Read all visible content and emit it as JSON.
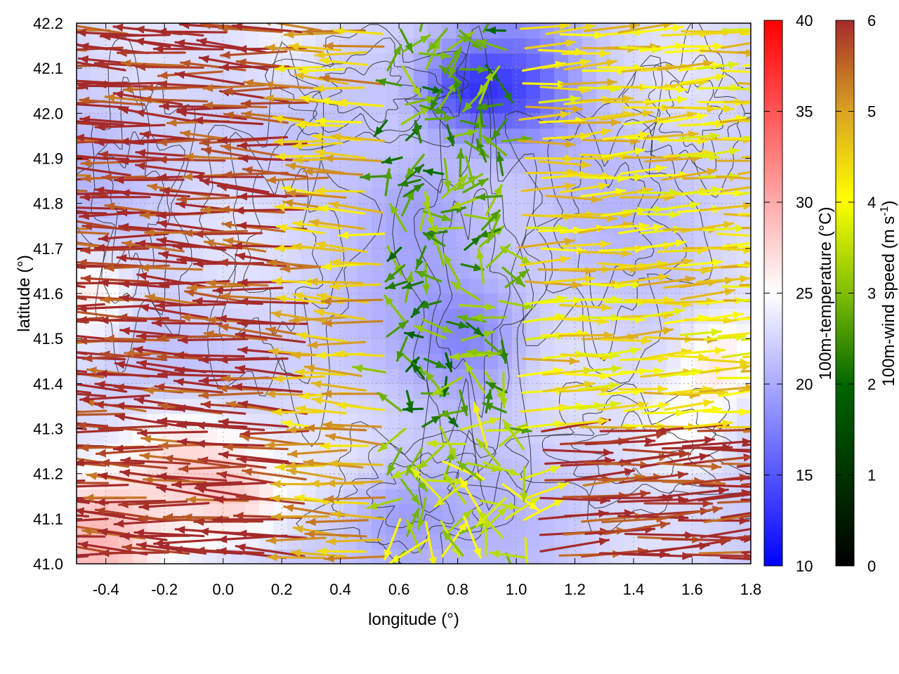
{
  "chart_data": {
    "type": "heatmap",
    "subtype": "field-with-wind-vectors-and-contours",
    "xlabel": "longitude (°)",
    "ylabel": "latitude (°)",
    "xlim": [
      -0.5,
      1.8
    ],
    "ylim": [
      41.0,
      42.2
    ],
    "xticks": [
      -0.4,
      -0.2,
      0.0,
      0.2,
      0.4,
      0.6,
      0.8,
      1.0,
      1.2,
      1.4,
      1.6,
      1.8
    ],
    "xtick_labels": [
      "-0.4",
      "-0.2",
      "0.0",
      "0.2",
      "0.4",
      "0.6",
      "0.8",
      "1.0",
      "1.2",
      "1.4",
      "1.6",
      "1.8"
    ],
    "yticks": [
      41.0,
      41.1,
      41.2,
      41.3,
      41.4,
      41.5,
      41.6,
      41.7,
      41.8,
      41.9,
      42.0,
      42.1,
      42.2
    ],
    "ytick_labels": [
      "41.0",
      "41.1",
      "41.2",
      "41.3",
      "41.4",
      "41.5",
      "41.6",
      "41.7",
      "41.8",
      "41.9",
      "42.0",
      "42.1",
      "42.2"
    ],
    "grid": true,
    "colorbars": [
      {
        "name": "temperature",
        "label": "100m-temperature (°C)",
        "range": [
          10,
          40
        ],
        "ticks": [
          10,
          15,
          20,
          25,
          30,
          35,
          40
        ],
        "tick_labels": [
          "10",
          "15",
          "20",
          "25",
          "30",
          "35",
          "40"
        ],
        "colors": [
          "#0000ff",
          "#ffffff",
          "#ff0000"
        ]
      },
      {
        "name": "wind-speed",
        "label_main": "100m-wind speed (m s",
        "label_sup": "-1",
        "label_close": ")",
        "range": [
          0,
          6
        ],
        "ticks": [
          0,
          1,
          2,
          3,
          4,
          5,
          6
        ],
        "tick_labels": [
          "0",
          "1",
          "2",
          "3",
          "4",
          "5",
          "6"
        ],
        "colors": [
          "#000000",
          "#006400",
          "#7fbf00",
          "#ffff00",
          "#daa520",
          "#a52a2a"
        ]
      }
    ],
    "temperature_field": {
      "description_values_deg_c": "approximate field",
      "background": 22,
      "anomalies": [
        {
          "lon": -0.45,
          "lat": 41.05,
          "value": 28,
          "spread": 0.25
        },
        {
          "lon": -0.15,
          "lat": 41.25,
          "value": 27,
          "spread": 0.2
        },
        {
          "lon": 0.05,
          "lat": 41.15,
          "value": 27,
          "spread": 0.18
        },
        {
          "lon": -0.45,
          "lat": 41.6,
          "value": 26,
          "spread": 0.15
        },
        {
          "lon": 1.6,
          "lat": 41.3,
          "value": 26,
          "spread": 0.2
        },
        {
          "lon": 1.7,
          "lat": 41.45,
          "value": 26,
          "spread": 0.15
        },
        {
          "lon": 0.2,
          "lat": 42.15,
          "value": 25,
          "spread": 0.2
        },
        {
          "lon": 1.0,
          "lat": 42.05,
          "value": 15,
          "spread": 0.2
        },
        {
          "lon": 0.8,
          "lat": 42.05,
          "value": 16,
          "spread": 0.15
        },
        {
          "lon": 0.85,
          "lat": 41.5,
          "value": 18,
          "spread": 0.2
        },
        {
          "lon": 0.7,
          "lat": 41.8,
          "value": 19,
          "spread": 0.2
        },
        {
          "lon": 0.6,
          "lat": 41.1,
          "value": 19,
          "spread": 0.18
        }
      ]
    },
    "wind_field": {
      "units": "m s-1",
      "regions": [
        {
          "lon_range": [
            -0.5,
            0.45
          ],
          "lat_range": [
            41.0,
            42.2
          ],
          "speed": 6,
          "direction": "westward"
        },
        {
          "lon_range": [
            0.3,
            0.6
          ],
          "lat_range": [
            41.0,
            42.2
          ],
          "speed": 4.5,
          "direction": "westward"
        },
        {
          "lon_range": [
            0.55,
            1.05
          ],
          "lat_range": [
            41.3,
            42.2
          ],
          "speed": 2,
          "direction": "variable"
        },
        {
          "lon_range": [
            1.0,
            1.8
          ],
          "lat_range": [
            41.3,
            42.2
          ],
          "speed": 4,
          "direction": "eastward"
        },
        {
          "lon_range": [
            1.05,
            1.8
          ],
          "lat_range": [
            41.0,
            41.3
          ],
          "speed": 6,
          "direction": "eastward"
        }
      ]
    },
    "contours": {
      "description": "terrain elevation contours (black)",
      "count_shown": 8
    }
  }
}
